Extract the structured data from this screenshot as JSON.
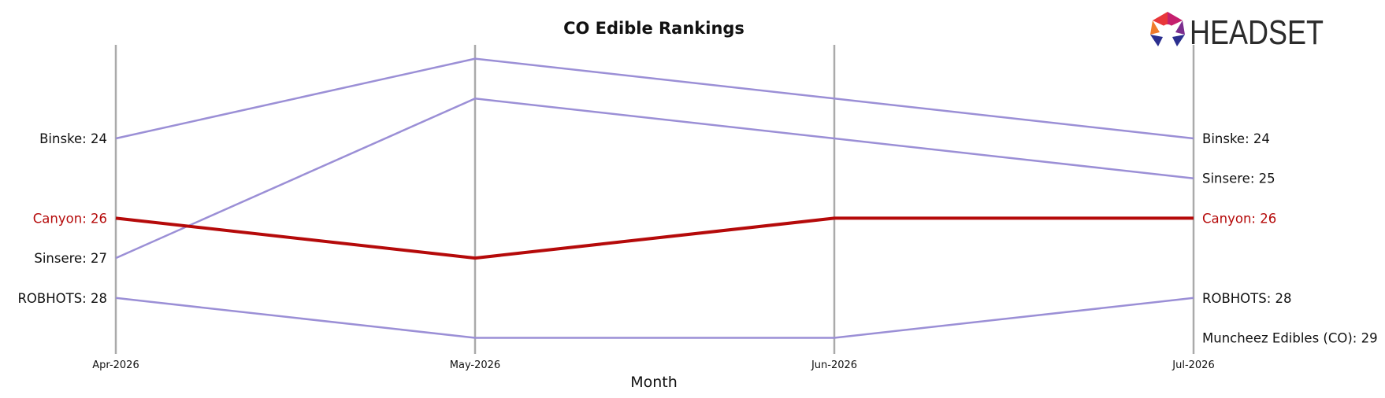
{
  "brand": {
    "logo_text": "HEADSET",
    "colors": [
      "#e8373a",
      "#f07b2b",
      "#c51f6e",
      "#7b2d8e",
      "#2b2f8f"
    ]
  },
  "chart_data": {
    "type": "line",
    "subtype": "bump",
    "title": "CO Edible Rankings",
    "xlabel": "Month",
    "ylabel": "",
    "x": [
      "Apr-2026",
      "May-2026",
      "Jun-2026",
      "Jul-2026"
    ],
    "y_inverted": true,
    "ylim": [
      30,
      21.5
    ],
    "grid": "vertical lines at each month",
    "legend": "none (inline labels at left and right ends)",
    "series": [
      {
        "name": "Binske",
        "values": [
          24,
          22,
          23,
          24
        ],
        "color": "#9b8fd6",
        "highlight": false
      },
      {
        "name": "Sinsere",
        "values": [
          27,
          23,
          24,
          25
        ],
        "color": "#9b8fd6",
        "highlight": false
      },
      {
        "name": "Canyon",
        "values": [
          26,
          27,
          26,
          26
        ],
        "color": "#b50a0a",
        "highlight": true
      },
      {
        "name": "ROBHOTS",
        "values": [
          28,
          29,
          29,
          28
        ],
        "color": "#9b8fd6",
        "highlight": false
      },
      {
        "name": "Muncheez Edibles (CO)",
        "values": [
          null,
          null,
          null,
          29
        ],
        "color": "#9b8fd6",
        "highlight": false
      }
    ],
    "left_labels": [
      {
        "series": "Binske",
        "text": "Binske: 24",
        "rank": 24
      },
      {
        "series": "Canyon",
        "text": "Canyon: 26",
        "rank": 26
      },
      {
        "series": "Sinsere",
        "text": "Sinsere: 27",
        "rank": 27
      },
      {
        "series": "ROBHOTS",
        "text": "ROBHOTS: 28",
        "rank": 28
      }
    ],
    "right_labels": [
      {
        "series": "Binske",
        "text": "Binske: 24",
        "rank": 24
      },
      {
        "series": "Sinsere",
        "text": "Sinsere: 25",
        "rank": 25
      },
      {
        "series": "Canyon",
        "text": "Canyon: 26",
        "rank": 26
      },
      {
        "series": "ROBHOTS",
        "text": "ROBHOTS: 28",
        "rank": 28
      },
      {
        "series": "Muncheez Edibles (CO)",
        "text": "Muncheez Edibles (CO): 29",
        "rank": 29
      }
    ],
    "axis_color": "#aaaaaa",
    "highlight_color": "#b50a0a",
    "label_color": "#111111"
  }
}
